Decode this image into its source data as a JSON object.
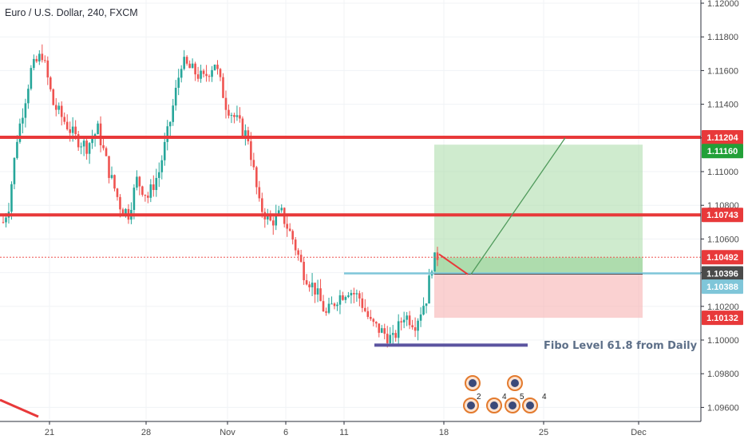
{
  "chart_data": {
    "type": "candlestick",
    "title": "Euro / U.S. Dollar, 240, FXCM",
    "ylim": [
      1.0945,
      1.1208
    ],
    "y_ticks": [
      "1.12000",
      "1.11800",
      "1.11600",
      "1.11400",
      "1.11200",
      "1.11000",
      "1.10800",
      "1.10600",
      "1.10400",
      "1.10200",
      "1.10000",
      "1.09800",
      "1.09600"
    ],
    "x_ticks": [
      "21",
      "28",
      "Nov",
      "6",
      "11",
      "18",
      "25",
      "Dec"
    ],
    "grid": true,
    "horizontal_levels": [
      {
        "value": 1.11204,
        "label": "1.11204",
        "color": "#e8393a"
      },
      {
        "value": 1.10743,
        "label": "1.10743",
        "color": "#e8393a"
      }
    ],
    "price_labels": [
      {
        "value": 1.11204,
        "label": "1.11204",
        "color": "#e8393a"
      },
      {
        "value": 1.1116,
        "label": "1.11160",
        "color": "#22a038"
      },
      {
        "value": 1.10743,
        "label": "1.10743",
        "color": "#e8393a"
      },
      {
        "value": 1.10492,
        "label": "1.10492",
        "color": "#e8393a"
      },
      {
        "value": 1.10396,
        "label": "1.10396",
        "color": "#4a4a4a"
      },
      {
        "value": 1.10388,
        "label": "1.10388",
        "color": "#7fc6d9"
      },
      {
        "value": 1.10132,
        "label": "1.10132",
        "color": "#e8393a"
      }
    ],
    "current_price": 1.10492,
    "entry_level": 1.10396,
    "position": {
      "entry": 1.10396,
      "target": 1.1116,
      "stop": 1.10132
    },
    "annotation": "Fibo Level 61.8 from Daily",
    "event_markers": [
      "2",
      "4",
      "5",
      "4"
    ],
    "colors": {
      "up": "#26a69a",
      "down": "#ef5350",
      "level": "#e8393a",
      "fibo": "#5b54a0",
      "entry": "#7fc6d9"
    }
  }
}
